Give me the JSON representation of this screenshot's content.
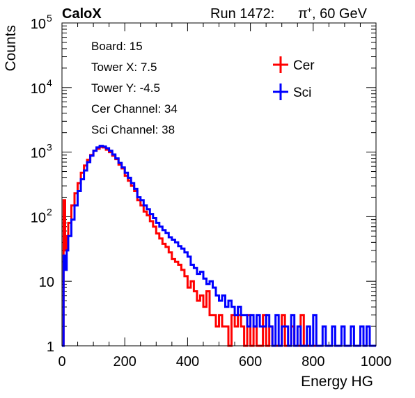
{
  "header": {
    "experiment": "CaloX",
    "run_text": "Run 1472:",
    "particle": "π",
    "particle_charge": "+",
    "energy_text": ", 60 GeV"
  },
  "info": {
    "lines": [
      "Board: 15",
      "Tower X: 7.5",
      "Tower Y: -4.5",
      "Cer Channel: 34",
      "Sci Channel: 38"
    ]
  },
  "chart_data": {
    "type": "line",
    "title": "",
    "xlabel": "Energy HG",
    "ylabel": "Counts",
    "xlim": [
      0,
      1000
    ],
    "ylim": [
      1,
      100000
    ],
    "y_scale": "log",
    "x_ticks": [
      0,
      200,
      400,
      600,
      800,
      1000
    ],
    "y_ticks": [
      {
        "value": 1,
        "label": "1",
        "exp": ""
      },
      {
        "value": 10,
        "label": "10",
        "exp": ""
      },
      {
        "value": 100,
        "label": "10",
        "exp": "2"
      },
      {
        "value": 1000,
        "label": "10",
        "exp": "3"
      },
      {
        "value": 10000,
        "label": "10",
        "exp": "4"
      },
      {
        "value": 100000,
        "label": "10",
        "exp": "5"
      }
    ],
    "legend_position": "top-right",
    "series": [
      {
        "name": "Cer",
        "color": "#ff0000",
        "x": [
          0,
          5,
          10,
          15,
          20,
          30,
          40,
          50,
          60,
          70,
          80,
          90,
          100,
          110,
          120,
          130,
          140,
          150,
          160,
          170,
          180,
          190,
          200,
          210,
          220,
          230,
          240,
          250,
          260,
          270,
          280,
          290,
          300,
          310,
          320,
          330,
          340,
          350,
          360,
          370,
          380,
          390,
          400,
          410,
          420,
          430,
          440,
          450,
          460,
          470,
          480,
          490,
          500,
          510,
          520,
          530,
          540,
          550,
          560,
          570,
          580,
          590,
          600,
          610,
          620,
          630,
          640,
          650,
          660,
          670,
          680,
          690,
          700,
          710,
          720,
          730,
          740,
          750,
          760,
          770,
          780,
          790,
          800
        ],
        "values": [
          1,
          180,
          30,
          50,
          80,
          150,
          230,
          330,
          480,
          620,
          760,
          900,
          1050,
          1130,
          1200,
          1180,
          1090,
          1000,
          880,
          780,
          640,
          560,
          430,
          360,
          300,
          250,
          180,
          150,
          120,
          105,
          85,
          70,
          55,
          46,
          38,
          34,
          28,
          22,
          20,
          18,
          15,
          12,
          8,
          10,
          7,
          5,
          6,
          4,
          7,
          3,
          3,
          2,
          3,
          2,
          2,
          1,
          3,
          2,
          3,
          2,
          1,
          3,
          1,
          2,
          1,
          1,
          3,
          1,
          2,
          1,
          1,
          1,
          3,
          1,
          1,
          2,
          1,
          1,
          3,
          1,
          1,
          1,
          1
        ]
      },
      {
        "name": "Sci",
        "color": "#0000ff",
        "x": [
          0,
          5,
          10,
          15,
          20,
          30,
          40,
          50,
          60,
          70,
          80,
          90,
          100,
          110,
          120,
          130,
          140,
          150,
          160,
          170,
          180,
          190,
          200,
          210,
          220,
          230,
          240,
          250,
          260,
          270,
          280,
          290,
          300,
          310,
          320,
          330,
          340,
          350,
          360,
          370,
          380,
          390,
          400,
          410,
          420,
          430,
          440,
          450,
          460,
          470,
          480,
          490,
          500,
          510,
          520,
          530,
          540,
          550,
          560,
          570,
          580,
          590,
          600,
          610,
          620,
          630,
          640,
          650,
          660,
          670,
          680,
          690,
          700,
          710,
          720,
          730,
          740,
          750,
          760,
          770,
          780,
          790,
          800,
          810,
          820,
          830,
          840,
          850,
          860,
          870,
          880,
          890,
          900,
          910,
          920,
          930,
          940,
          950,
          960,
          970,
          980,
          990,
          1000
        ],
        "values": [
          1,
          25,
          15,
          30,
          50,
          90,
          150,
          250,
          380,
          520,
          700,
          880,
          1050,
          1180,
          1250,
          1220,
          1150,
          1050,
          920,
          800,
          680,
          580,
          480,
          400,
          330,
          270,
          200,
          180,
          150,
          130,
          110,
          95,
          80,
          70,
          62,
          56,
          48,
          44,
          40,
          35,
          32,
          28,
          24,
          18,
          16,
          13,
          14,
          11,
          9,
          10,
          8,
          6,
          5,
          6,
          4,
          5,
          4,
          3,
          4,
          3,
          3,
          2,
          3,
          2,
          3,
          2,
          2,
          3,
          2,
          1,
          3,
          1,
          2,
          2,
          1,
          3,
          1,
          2,
          1,
          1,
          2,
          1,
          3,
          1,
          1,
          2,
          1,
          1,
          2,
          1,
          1,
          2,
          1,
          1,
          2,
          1,
          1,
          2,
          1,
          2,
          1,
          1,
          1
        ]
      }
    ]
  }
}
